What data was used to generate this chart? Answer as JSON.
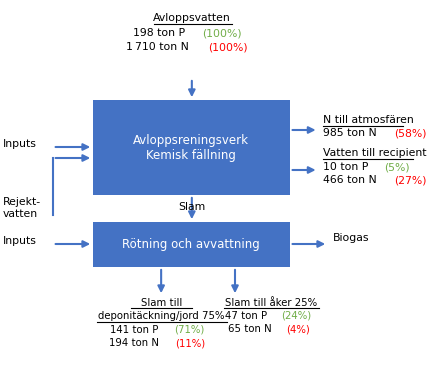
{
  "bg_color": "#ffffff",
  "box_color": "#4472C4",
  "box_text_color": "#ffffff",
  "arrow_color": "#4472C4",
  "black": "#000000",
  "green": "#70AD47",
  "red": "#FF0000",
  "box1_label": "Avloppsreningsverk\nKemisk fällning",
  "box2_label": "Rötning och avvattning",
  "top_title": "Avloppsvatten",
  "right_top_title": "N till atmosfären",
  "right_mid_title": "Vatten till recipient",
  "right_bot_label": "Biogas",
  "left_top_label": "Inputs",
  "left_mid_label": "Rejekt-\nvatten",
  "left_bot_label": "Inputs",
  "slam_label": "Slam"
}
